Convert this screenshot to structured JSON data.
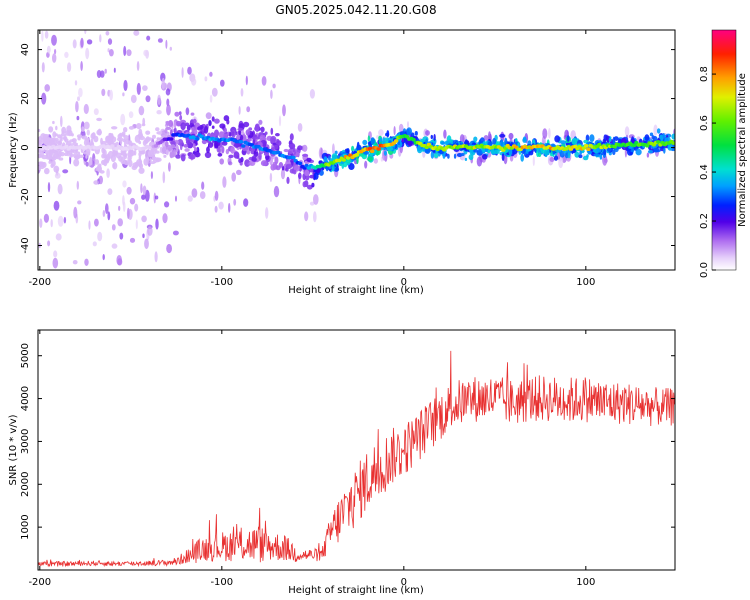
{
  "figure": {
    "title": "GN05.2025.042.11.20.G08"
  },
  "chart_data": [
    {
      "type": "heatmap",
      "xlabel": "Height of straight line (km)",
      "ylabel": "Frequency (Hz)",
      "xlim": [
        -201,
        149
      ],
      "ylim": [
        -50,
        48
      ],
      "x_ticks": [
        -200,
        -100,
        0,
        100
      ],
      "y_ticks": [
        -40,
        -20,
        0,
        20,
        40
      ],
      "grid": false,
      "ridge": {
        "description_x": [
          -200,
          -180,
          -160,
          -140,
          -125,
          -110,
          -95,
          -80,
          -70,
          -60,
          -55,
          -48,
          -40,
          -30,
          -20,
          -10,
          -5,
          0,
          5,
          10,
          20,
          40,
          60,
          80,
          100,
          120,
          149
        ],
        "center_hz": [
          0,
          0,
          0,
          0,
          5,
          4,
          3,
          0,
          -2,
          -5,
          -8,
          -8,
          -6,
          -4,
          -1,
          1,
          2,
          5,
          3,
          1,
          0,
          0,
          0,
          0,
          0,
          1,
          2
        ],
        "amplitude": [
          0.05,
          0.05,
          0.05,
          0.05,
          0.3,
          0.4,
          0.35,
          0.35,
          0.35,
          0.35,
          0.3,
          0.5,
          0.75,
          0.85,
          0.9,
          0.9,
          0.85,
          0.6,
          0.6,
          0.8,
          0.75,
          0.75,
          0.8,
          0.85,
          0.8,
          0.65,
          0.7
        ]
      },
      "colorbar": {
        "label": "Normalized spectral amplitude",
        "range": [
          0,
          0.98
        ],
        "ticks": [
          "0.0",
          "0.2",
          "0.4",
          "0.6",
          "0.8"
        ],
        "tick_values": [
          0,
          0.2,
          0.4,
          0.6,
          0.8
        ]
      }
    },
    {
      "type": "line",
      "xlabel": "Height of straight line (km)",
      "ylabel": "SNR (10 * v/v)",
      "xlim": [
        -201,
        149
      ],
      "ylim": [
        0,
        5600
      ],
      "x_ticks": [
        -200,
        -100,
        0,
        100
      ],
      "y_ticks": [
        1000,
        2000,
        3000,
        4000,
        5000
      ],
      "grid": false,
      "series": [
        {
          "color": "#e83030",
          "x": [
            -200,
            -190,
            -180,
            -170,
            -160,
            -150,
            -140,
            -130,
            -125,
            -120,
            -115,
            -110,
            -100,
            -90,
            -80,
            -70,
            -65,
            -60,
            -55,
            -50,
            -45,
            -40,
            -35,
            -30,
            -25,
            -20,
            -15,
            -10,
            -5,
            0,
            5,
            10,
            15,
            20,
            25,
            30,
            40,
            50,
            60,
            70,
            80,
            90,
            100,
            110,
            120,
            130,
            140,
            149
          ],
          "y": [
            150,
            140,
            150,
            160,
            150,
            150,
            160,
            170,
            200,
            300,
            400,
            500,
            550,
            600,
            600,
            550,
            500,
            400,
            350,
            350,
            350,
            900,
            1200,
            1500,
            1800,
            2100,
            2300,
            2500,
            2700,
            2800,
            3000,
            3200,
            3400,
            3600,
            3800,
            3900,
            4000,
            4000,
            3900,
            4000,
            4000,
            3950,
            4000,
            3900,
            3900,
            3850,
            3800,
            3800
          ],
          "noise": [
            60,
            60,
            60,
            60,
            60,
            60,
            60,
            70,
            100,
            150,
            250,
            300,
            350,
            400,
            450,
            350,
            300,
            250,
            150,
            150,
            150,
            450,
            600,
            700,
            700,
            750,
            750,
            700,
            650,
            650,
            600,
            600,
            600,
            600,
            550,
            550,
            550,
            550,
            550,
            550,
            550,
            550,
            550,
            550,
            500,
            500,
            450,
            450
          ]
        }
      ]
    }
  ]
}
